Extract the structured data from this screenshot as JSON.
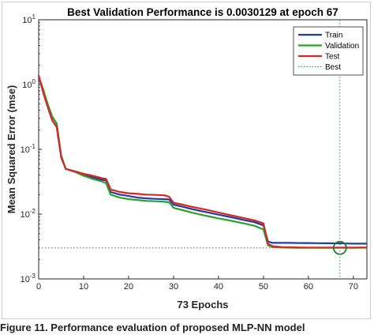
{
  "chart_data": {
    "type": "line",
    "title": "Best Validation Performance is 0.0030129 at epoch 67",
    "xlabel": "73 Epochs",
    "ylabel": "Mean Squared Error  (mse)",
    "xlim": [
      0,
      73
    ],
    "ylim": [
      0.001,
      10
    ],
    "y_scale": "log",
    "x_ticks": [
      "0",
      "10",
      "20",
      "30",
      "40",
      "50",
      "60",
      "70"
    ],
    "y_ticks": [
      {
        "base": "10",
        "exp": "1"
      },
      {
        "base": "10",
        "exp": "0"
      },
      {
        "base": "10",
        "exp": "-1"
      },
      {
        "base": "10",
        "exp": "-2"
      },
      {
        "base": "10",
        "exp": "-3"
      }
    ],
    "legend_position": "top-right",
    "series": [
      {
        "name": "Train",
        "color": "#1f3f9f",
        "x": [
          0,
          1,
          2,
          3,
          4,
          5,
          6,
          8,
          10,
          12,
          14,
          15,
          16,
          18,
          20,
          22,
          24,
          26,
          28,
          29,
          30,
          32,
          34,
          36,
          38,
          40,
          42,
          44,
          46,
          48,
          50,
          51,
          52,
          54,
          56,
          58,
          60,
          62,
          64,
          66,
          67,
          68,
          70,
          72,
          73
        ],
        "values": [
          1.3,
          0.8,
          0.5,
          0.32,
          0.25,
          0.08,
          0.05,
          0.045,
          0.04,
          0.037,
          0.034,
          0.033,
          0.022,
          0.02,
          0.019,
          0.018,
          0.0175,
          0.0172,
          0.017,
          0.0168,
          0.014,
          0.013,
          0.012,
          0.0112,
          0.0105,
          0.0098,
          0.0092,
          0.0086,
          0.008,
          0.0075,
          0.0067,
          0.0038,
          0.0036,
          0.0036,
          0.0036,
          0.00358,
          0.00358,
          0.00356,
          0.00355,
          0.00354,
          0.00354,
          0.00352,
          0.0035,
          0.0035,
          0.0035
        ]
      },
      {
        "name": "Validation",
        "color": "#2ca02c",
        "x": [
          0,
          1,
          2,
          3,
          4,
          5,
          6,
          8,
          10,
          12,
          14,
          15,
          16,
          18,
          20,
          22,
          24,
          26,
          28,
          29,
          30,
          32,
          34,
          36,
          38,
          40,
          42,
          44,
          46,
          48,
          50,
          51,
          52,
          54,
          56,
          58,
          60,
          62,
          64,
          66,
          67,
          68,
          70,
          72,
          73
        ],
        "values": [
          1.35,
          0.85,
          0.5,
          0.32,
          0.25,
          0.08,
          0.05,
          0.045,
          0.039,
          0.035,
          0.032,
          0.03,
          0.02,
          0.018,
          0.017,
          0.0165,
          0.016,
          0.0158,
          0.0155,
          0.0152,
          0.0125,
          0.0115,
          0.0106,
          0.0098,
          0.0092,
          0.0086,
          0.0081,
          0.0076,
          0.0071,
          0.0066,
          0.0058,
          0.0033,
          0.0031,
          0.00305,
          0.00303,
          0.00302,
          0.00302,
          0.00302,
          0.00302,
          0.00302,
          0.0030129,
          0.00302,
          0.00302,
          0.00303,
          0.00303
        ]
      },
      {
        "name": "Test",
        "color": "#d62728",
        "x": [
          0,
          1,
          2,
          3,
          4,
          5,
          6,
          8,
          10,
          12,
          14,
          15,
          16,
          18,
          20,
          22,
          24,
          26,
          28,
          29,
          30,
          32,
          34,
          36,
          38,
          40,
          42,
          44,
          46,
          48,
          50,
          51,
          52,
          54,
          56,
          58,
          60,
          62,
          64,
          66,
          67,
          68,
          70,
          72,
          73
        ],
        "values": [
          1.4,
          0.75,
          0.45,
          0.28,
          0.22,
          0.075,
          0.05,
          0.046,
          0.042,
          0.039,
          0.036,
          0.035,
          0.024,
          0.022,
          0.021,
          0.0205,
          0.02,
          0.0198,
          0.0195,
          0.0185,
          0.015,
          0.014,
          0.013,
          0.0122,
          0.0114,
          0.0106,
          0.0099,
          0.0092,
          0.0086,
          0.008,
          0.0072,
          0.0035,
          0.0032,
          0.0031,
          0.00308,
          0.00306,
          0.00305,
          0.00305,
          0.00305,
          0.00305,
          0.00305,
          0.00305,
          0.00305,
          0.00306,
          0.00306
        ]
      }
    ],
    "best": {
      "name": "Best",
      "epoch": 67,
      "value": 0.0030129,
      "color": "#2e8b57"
    }
  },
  "caption": "Figure 11. Performance evaluation of proposed MLP-NN model"
}
